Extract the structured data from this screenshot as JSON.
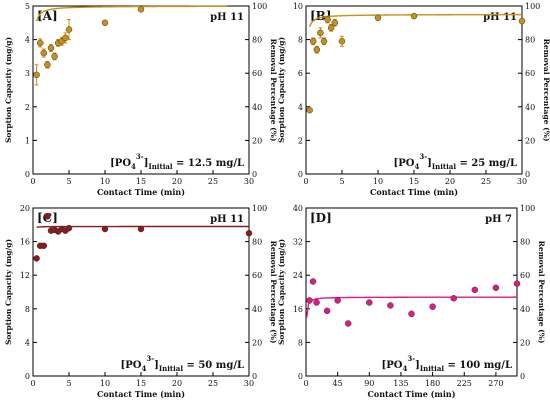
{
  "chart_data": [
    {
      "type": "scatter",
      "panel_label": "[A]",
      "ph_label": "pH 11",
      "concentration": {
        "species": "[PO",
        "sub": "4",
        "sup": "3-",
        "bracket": "]",
        "sub2": "Initial",
        "value": " = 12.5 mg/L"
      },
      "xlabel": "Contact Time (min)",
      "ylabel_left": "Sorption Capacity (mg/g)",
      "ylabel_right": "Removal Percentage (%)",
      "xlim": [
        0,
        30
      ],
      "ylim": [
        0,
        5
      ],
      "ylim_right": [
        0,
        100
      ],
      "xticks": [
        "0",
        "5",
        "10",
        "15",
        "20",
        "25",
        "30"
      ],
      "yticks": [
        "0",
        "1",
        "2",
        "3",
        "4",
        "5"
      ],
      "yticks_right": [
        "0",
        "20",
        "40",
        "60",
        "80",
        "100"
      ],
      "color": "#c8901a",
      "points": [
        {
          "x": 0.5,
          "y": 2.95,
          "err": 0.3
        },
        {
          "x": 1.0,
          "y": 3.9,
          "err": 0.12
        },
        {
          "x": 1.5,
          "y": 3.6,
          "err": 0.12
        },
        {
          "x": 2.0,
          "y": 3.25,
          "err": 0.1
        },
        {
          "x": 2.5,
          "y": 3.75,
          "err": 0.1
        },
        {
          "x": 3.0,
          "y": 3.5,
          "err": 0.1
        },
        {
          "x": 3.5,
          "y": 3.9,
          "err": 0.1
        },
        {
          "x": 4.0,
          "y": 3.95,
          "err": 0.12
        },
        {
          "x": 4.5,
          "y": 4.05,
          "err": 0.15
        },
        {
          "x": 5.0,
          "y": 4.3,
          "err": 0.3
        },
        {
          "x": 10,
          "y": 4.5,
          "err": 0
        },
        {
          "x": 15,
          "y": 4.9,
          "err": 0
        }
      ],
      "fit": {
        "qmax": 5.0,
        "k": 4.0,
        "x0": 0.5,
        "x1": 27
      }
    },
    {
      "type": "scatter",
      "panel_label": "[B]",
      "ph_label": "pH 11",
      "concentration": {
        "species": "[PO",
        "sub": "4",
        "sup": "3-",
        "bracket": "]",
        "sub2": "Initial",
        "value": " = 25 mg/L"
      },
      "xlabel": "Contact Time (min)",
      "ylabel_left": "Sorption Capacity (mg/g)",
      "ylabel_right": "Removal Percentage (%)",
      "xlim": [
        0,
        30
      ],
      "ylim": [
        0,
        10
      ],
      "ylim_right": [
        0,
        100
      ],
      "xticks": [
        "0",
        "5",
        "10",
        "15",
        "20",
        "25",
        "30"
      ],
      "yticks": [
        "0",
        "2",
        "4",
        "6",
        "8",
        "10"
      ],
      "yticks_right": [
        "0",
        "20",
        "40",
        "60",
        "80",
        "100"
      ],
      "color": "#c8901a",
      "points": [
        {
          "x": 0.5,
          "y": 3.8,
          "err": 0
        },
        {
          "x": 1.0,
          "y": 7.9,
          "err": 0.2
        },
        {
          "x": 1.5,
          "y": 7.4,
          "err": 0.2
        },
        {
          "x": 2.0,
          "y": 8.4,
          "err": 0.3
        },
        {
          "x": 2.5,
          "y": 7.9,
          "err": 0.2
        },
        {
          "x": 3.0,
          "y": 9.2,
          "err": 0.2
        },
        {
          "x": 3.5,
          "y": 8.7,
          "err": 0.2
        },
        {
          "x": 4.0,
          "y": 9.0,
          "err": 0.2
        },
        {
          "x": 5.0,
          "y": 7.9,
          "err": 0.3
        },
        {
          "x": 10,
          "y": 9.3,
          "err": 0
        },
        {
          "x": 15,
          "y": 9.4,
          "err": 0
        },
        {
          "x": 30,
          "y": 9.1,
          "err": 0
        }
      ],
      "fit": {
        "qmax": 9.5,
        "k": 2.5,
        "x0": 0.5,
        "x1": 30
      }
    },
    {
      "type": "scatter",
      "panel_label": "[C]",
      "ph_label": "pH 11",
      "concentration": {
        "species": "[PO",
        "sub": "4",
        "sup": "3-",
        "bracket": "]",
        "sub2": "Initial",
        "value": " = 50 mg/L"
      },
      "xlabel": "Contact Time (min)",
      "ylabel_left": "Sorption Capacity (mg/g)",
      "ylabel_right": "Removal Percentage (%)",
      "xlim": [
        0,
        30
      ],
      "ylim": [
        0,
        20
      ],
      "ylim_right": [
        0,
        100
      ],
      "xticks": [
        "0",
        "5",
        "10",
        "15",
        "20",
        "25",
        "30"
      ],
      "yticks": [
        "0",
        "4",
        "8",
        "12",
        "16",
        "20"
      ],
      "yticks_right": [
        "0",
        "20",
        "40",
        "60",
        "80",
        "100"
      ],
      "color": "#8b1a1a",
      "points": [
        {
          "x": 0.5,
          "y": 14.0,
          "err": 0
        },
        {
          "x": 1.0,
          "y": 15.5,
          "err": 0
        },
        {
          "x": 1.5,
          "y": 15.5,
          "err": 0
        },
        {
          "x": 2.0,
          "y": 19.0,
          "err": 0
        },
        {
          "x": 2.5,
          "y": 17.3,
          "err": 0
        },
        {
          "x": 3.0,
          "y": 17.4,
          "err": 0
        },
        {
          "x": 3.5,
          "y": 17.2,
          "err": 0
        },
        {
          "x": 4.0,
          "y": 17.5,
          "err": 0
        },
        {
          "x": 4.5,
          "y": 17.3,
          "err": 0
        },
        {
          "x": 5.0,
          "y": 17.6,
          "err": 0
        },
        {
          "x": 10,
          "y": 17.5,
          "err": 0
        },
        {
          "x": 15,
          "y": 17.5,
          "err": 0
        },
        {
          "x": 30,
          "y": 17.0,
          "err": 0
        }
      ],
      "fit": {
        "qmax": 17.8,
        "k": 20,
        "x0": 0.5,
        "x1": 30
      }
    },
    {
      "type": "scatter",
      "panel_label": "[D]",
      "ph_label": "pH 7",
      "concentration": {
        "species": "[PO",
        "sub": "4",
        "sup": "3-",
        "bracket": "]",
        "sub2": "Initial",
        "value": " = 100 mg/L"
      },
      "xlabel": "Contact Time (min)",
      "ylabel_left": "Sorption Capacity (mg/g)",
      "ylabel_right": "Removal Percentage (%)",
      "xlim": [
        0,
        300
      ],
      "ylim": [
        0,
        40
      ],
      "ylim_right": [
        0,
        100
      ],
      "xticks": [
        "0",
        "45",
        "90",
        "135",
        "180",
        "225",
        "270"
      ],
      "xtick_values": [
        0,
        45,
        90,
        135,
        180,
        225,
        270
      ],
      "yticks": [
        "0",
        "8",
        "16",
        "24",
        "32",
        "40"
      ],
      "yticks_right": [
        "0",
        "20",
        "40",
        "60",
        "80",
        "100"
      ],
      "color": "#e0188c",
      "points": [
        {
          "x": 5,
          "y": 18.0,
          "err": 0
        },
        {
          "x": 10,
          "y": 22.5,
          "err": 0
        },
        {
          "x": 15,
          "y": 17.5,
          "err": 0
        },
        {
          "x": 30,
          "y": 15.5,
          "err": 0
        },
        {
          "x": 45,
          "y": 18.0,
          "err": 0
        },
        {
          "x": 60,
          "y": 12.5,
          "err": 0
        },
        {
          "x": 90,
          "y": 17.5,
          "err": 0
        },
        {
          "x": 120,
          "y": 16.8,
          "err": 0
        },
        {
          "x": 150,
          "y": 14.8,
          "err": 0
        },
        {
          "x": 180,
          "y": 16.5,
          "err": 0
        },
        {
          "x": 210,
          "y": 18.5,
          "err": 0
        },
        {
          "x": 240,
          "y": 20.5,
          "err": 0
        },
        {
          "x": 270,
          "y": 21.0,
          "err": 0
        },
        {
          "x": 300,
          "y": 22.0,
          "err": 0
        }
      ],
      "fit": {
        "qmax": 18.8,
        "k": 0.15,
        "x0": 1,
        "x1": 300
      }
    }
  ]
}
